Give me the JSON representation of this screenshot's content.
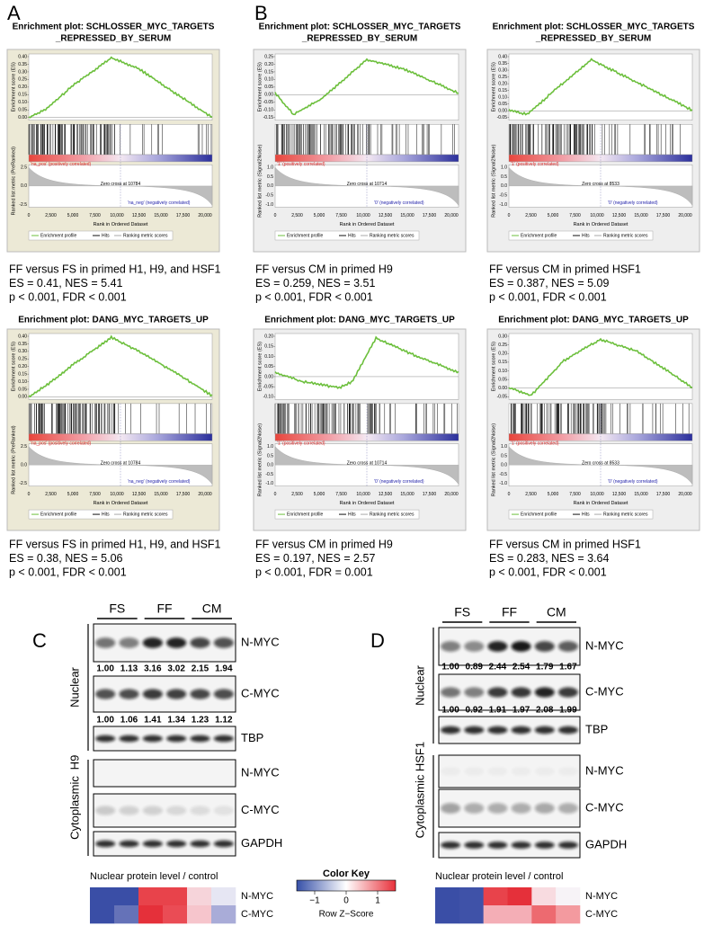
{
  "panel_labels": [
    "A",
    "B",
    "C",
    "D"
  ],
  "plots": [
    {
      "title": [
        "Enrichment plot: SCHLOSSER_MYC_TARGETS",
        "_REPRESSED_BY_SERUM"
      ],
      "es_label": "Enrichment score (ES)",
      "es_ticks": [
        "0.40",
        "0.35",
        "0.30",
        "0.25",
        "0.20",
        "0.15",
        "0.10",
        "0.05",
        "0.00"
      ],
      "metric_label": "Ranked list metric (PreRanked)",
      "metric_ticks": [
        "2.5",
        "0.0",
        "-2.5"
      ],
      "pos_label": "'na_pos' (positively correlated)",
      "neg_label": "'na_neg' (negatively correlated)",
      "zero_cross": "Zero cross at 10784",
      "x_ticks": [
        "0",
        "2,500",
        "5,000",
        "7,500",
        "10,000",
        "12,500",
        "15,000",
        "17,500",
        "20,000"
      ],
      "x_label": "Rank in Ordered Dataset",
      "legend": [
        "Enrichment profile",
        "Hits",
        "Ranking metric scores"
      ],
      "caption": [
        "FF versus FS in primed H1, H9, and HSF1",
        "ES = 0.41, NES = 5.41",
        "p < 0.001, FDR < 0.001"
      ]
    },
    {
      "title": [
        "Enrichment plot: SCHLOSSER_MYC_TARGETS",
        "_REPRESSED_BY_SERUM"
      ],
      "es_label": "Enrichment score (ES)",
      "es_ticks": [
        "0.25",
        "0.20",
        "0.15",
        "0.10",
        "0.05",
        "0.00",
        "-0.05",
        "-0.10",
        "-0.15"
      ],
      "metric_label": "Ranked list metric (Signal2Noise)",
      "metric_ticks": [
        "1.0",
        "0.5",
        "0.0",
        "-0.5",
        "-1.0"
      ],
      "pos_label": "'1' (positively correlated)",
      "neg_label": "'0' (negatively correlated)",
      "zero_cross": "Zero cross at 10714",
      "x_ticks": [
        "0",
        "2,500",
        "5,000",
        "7,500",
        "10,000",
        "12,500",
        "15,000",
        "17,500",
        "20,000"
      ],
      "x_label": "Rank in Ordered Dataset",
      "legend": [
        "Enrichment profile",
        "Hits",
        "Ranking metric scores"
      ],
      "caption": [
        "FF versus CM in primed H9",
        "ES = 0.259, NES = 3.51",
        "p < 0.001, FDR < 0.001"
      ]
    },
    {
      "title": [
        "Enrichment plot: SCHLOSSER_MYC_TARGETS",
        "_REPRESSED_BY_SERUM"
      ],
      "es_label": "Enrichment score (ES)",
      "es_ticks": [
        "0.40",
        "0.35",
        "0.30",
        "0.25",
        "0.20",
        "0.15",
        "0.10",
        "0.05",
        "0.00",
        "-0.05"
      ],
      "metric_label": "Ranked list metric (Signal2Noise)",
      "metric_ticks": [
        "1.0",
        "0.5",
        "0.0",
        "-0.5",
        "-1.0"
      ],
      "pos_label": "'1' (positively correlated)",
      "neg_label": "'0' (negatively correlated)",
      "zero_cross": "Zero cross at 8533",
      "x_ticks": [
        "0",
        "2,500",
        "5,000",
        "7,500",
        "10,000",
        "12,500",
        "15,000",
        "17,500",
        "20,000"
      ],
      "x_label": "Rank in Ordered Dataset",
      "legend": [
        "Enrichment profile",
        "Hits",
        "Ranking metric scores"
      ],
      "caption": [
        "FF versus CM in primed HSF1",
        "ES = 0.387, NES = 5.09",
        "p < 0.001, FDR < 0.001"
      ]
    },
    {
      "title": [
        "Enrichment plot: DANG_MYC_TARGETS_UP"
      ],
      "es_label": "Enrichment score (ES)",
      "es_ticks": [
        "0.40",
        "0.35",
        "0.30",
        "0.25",
        "0.20",
        "0.15",
        "0.10",
        "0.05",
        "0.00"
      ],
      "metric_label": "Ranked list metric (PreRanked)",
      "metric_ticks": [
        "2.5",
        "0.0",
        "-2.5"
      ],
      "pos_label": "'na_pos' (positively correlated)",
      "neg_label": "'na_neg' (negatively correlated)",
      "zero_cross": "Zero cross at 10784",
      "x_ticks": [
        "0",
        "2,500",
        "5,000",
        "7,500",
        "10,000",
        "12,500",
        "15,000",
        "17,500",
        "20,000"
      ],
      "x_label": "Rank in Ordered Dataset",
      "legend": [
        "Enrichment profile",
        "Hits",
        "Ranking metric scores"
      ],
      "caption": [
        "FF versus FS in primed H1, H9, and HSF1",
        "ES = 0.38, NES = 5.06",
        "p < 0.001, FDR < 0.001"
      ]
    },
    {
      "title": [
        "Enrichment plot: DANG_MYC_TARGETS_UP"
      ],
      "es_label": "Enrichment score (ES)",
      "es_ticks": [
        "0.20",
        "0.15",
        "0.10",
        "0.05",
        "0.00",
        "-0.05",
        "-0.10"
      ],
      "metric_label": "Ranked list metric (Signal2Noise)",
      "metric_ticks": [
        "1.0",
        "0.5",
        "0.0",
        "-0.5",
        "-1.0"
      ],
      "pos_label": "'1' (positively correlated)",
      "neg_label": "'0' (negatively correlated)",
      "zero_cross": "Zero cross at 10714",
      "x_ticks": [
        "0",
        "2,500",
        "5,000",
        "7,500",
        "10,000",
        "12,500",
        "15,000",
        "17,500",
        "20,000"
      ],
      "x_label": "Rank in Ordered Dataset",
      "legend": [
        "Enrichment profile",
        "Hits",
        "Ranking metric scores"
      ],
      "caption": [
        "FF versus CM in primed H9",
        "ES = 0.197, NES = 2.57",
        "p < 0.001, FDR = 0.001"
      ]
    },
    {
      "title": [
        "Enrichment plot: DANG_MYC_TARGETS_UP"
      ],
      "es_label": "Enrichment score (ES)",
      "es_ticks": [
        "0.30",
        "0.25",
        "0.20",
        "0.15",
        "0.10",
        "0.05",
        "0.00",
        "-0.05"
      ],
      "metric_label": "Ranked list metric (Signal2Noise)",
      "metric_ticks": [
        "1.0",
        "0.5",
        "0.0",
        "-0.5",
        "-1.0"
      ],
      "pos_label": "'1' (positively correlated)",
      "neg_label": "'0' (negatively correlated)",
      "zero_cross": "Zero cross at 8533",
      "x_ticks": [
        "0",
        "2,500",
        "5,000",
        "7,500",
        "10,000",
        "12,500",
        "15,000",
        "17,500",
        "20,000"
      ],
      "x_label": "Rank in Ordered Dataset",
      "legend": [
        "Enrichment profile",
        "Hits",
        "Ranking metric scores"
      ],
      "caption": [
        "FF versus CM in primed HSF1",
        "ES = 0.283, NES = 3.64",
        "p < 0.001, FDR < 0.001"
      ]
    }
  ],
  "blots": [
    {
      "groups": [
        "FS",
        "FF",
        "CM"
      ],
      "cell_line": "H9",
      "nuclear_label": "Nuclear",
      "cyto_label": "Cytoplasmic",
      "nuclear": [
        {
          "protein": "N-MYC",
          "quant": [
            "1.00",
            "1.13",
            "3.16",
            "3.02",
            "2.15",
            "1.94"
          ]
        },
        {
          "protein": "C-MYC",
          "quant": [
            "1.00",
            "1.06",
            "1.41",
            "1.34",
            "1.23",
            "1.12"
          ]
        },
        {
          "protein": "TBP"
        }
      ],
      "cytoplasmic": [
        {
          "protein": "N-MYC"
        },
        {
          "protein": "C-MYC"
        },
        {
          "protein": "GAPDH"
        }
      ],
      "heatmap": {
        "title": "Nuclear protein level / control",
        "rows": [
          {
            "name": "N-MYC",
            "colors": [
              "#3a4ea6",
              "#3a4ea6",
              "#e8434b",
              "#e8434b",
              "#f6d4da",
              "#e6e6f3"
            ]
          },
          {
            "name": "C-MYC",
            "colors": [
              "#3a4ea6",
              "#6572b8",
              "#e5303a",
              "#ea4c55",
              "#f6c5cc",
              "#a9acd8"
            ]
          }
        ]
      }
    },
    {
      "groups": [
        "FS",
        "FF",
        "CM"
      ],
      "cell_line": "HSF1",
      "nuclear_label": "Nuclear",
      "cyto_label": "Cytoplasmic",
      "nuclear": [
        {
          "protein": "N-MYC",
          "quant": [
            "1.00",
            "0.89",
            "2.44",
            "2.54",
            "1.79",
            "1.67"
          ]
        },
        {
          "protein": "C-MYC",
          "quant": [
            "1.00",
            "0.92",
            "1.91",
            "1.97",
            "2.08",
            "1.99"
          ]
        },
        {
          "protein": "TBP"
        }
      ],
      "cytoplasmic": [
        {
          "protein": "N-MYC"
        },
        {
          "protein": "C-MYC"
        },
        {
          "protein": "GAPDH"
        }
      ],
      "heatmap": {
        "title": "Nuclear protein level / control",
        "rows": [
          {
            "name": "N-MYC",
            "colors": [
              "#3a4ea6",
              "#3f52a8",
              "#e8434b",
              "#e5303a",
              "#f8dbe0",
              "#f7f3f7"
            ]
          },
          {
            "name": "C-MYC",
            "colors": [
              "#3a4ea6",
              "#3f52a8",
              "#f4aeb6",
              "#f4aeb6",
              "#ed6a70",
              "#f39a9f"
            ]
          }
        ]
      }
    }
  ],
  "color_key": {
    "title": "Color Key",
    "ticks": [
      "−1",
      "0",
      "1"
    ],
    "label": "Row Z−Score"
  }
}
